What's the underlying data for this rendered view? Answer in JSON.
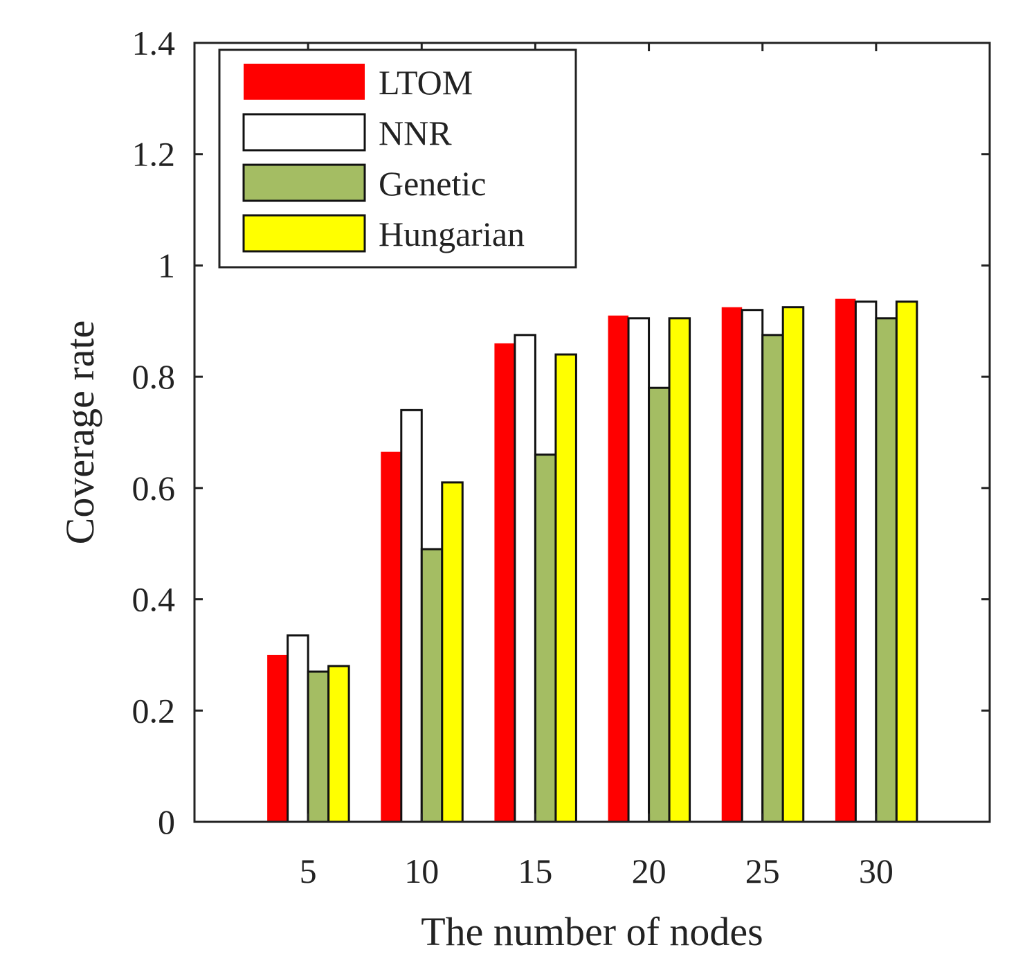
{
  "chart_data": {
    "type": "bar",
    "title": "",
    "xlabel": "The number of nodes",
    "ylabel": "Coverage rate",
    "categories": [
      "5",
      "10",
      "15",
      "20",
      "25",
      "30"
    ],
    "x_range": [
      0,
      35
    ],
    "ylim": [
      0,
      1.4
    ],
    "yticks": [
      "0",
      "0.2",
      "0.4",
      "0.6",
      "0.8",
      "1",
      "1.2",
      "1.4"
    ],
    "grid": false,
    "legend_position": "top-left",
    "series": [
      {
        "name": "LTOM",
        "color": "#ff0000",
        "outlined": false,
        "values": [
          0.3,
          0.665,
          0.86,
          0.91,
          0.925,
          0.94
        ]
      },
      {
        "name": "NNR",
        "color": "#ffffff",
        "outlined": true,
        "values": [
          0.335,
          0.74,
          0.875,
          0.905,
          0.92,
          0.935
        ]
      },
      {
        "name": "Genetic",
        "color": "#a4bd63",
        "outlined": true,
        "values": [
          0.27,
          0.49,
          0.66,
          0.78,
          0.875,
          0.905
        ]
      },
      {
        "name": "Hungarian",
        "color": "#ffff00",
        "outlined": true,
        "values": [
          0.28,
          0.61,
          0.84,
          0.905,
          0.925,
          0.935
        ]
      }
    ]
  }
}
